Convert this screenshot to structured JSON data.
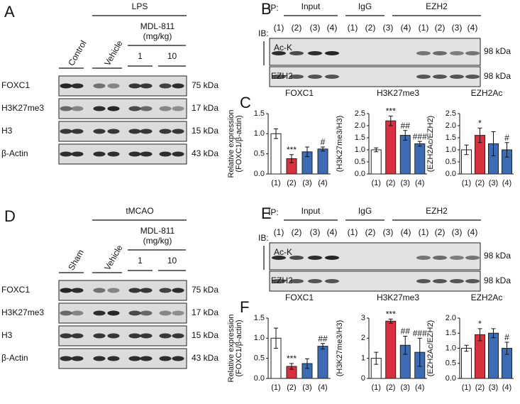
{
  "panels": [
    {
      "letter": "A",
      "condition": "LPS",
      "lanes": [
        "Control",
        "Vehicle"
      ],
      "treatment": [
        "MDL-811",
        "(mg/kg)"
      ],
      "doses": [
        "1",
        "10"
      ],
      "rows": [
        {
          "label": "FOXC1",
          "size": "75 kDa"
        },
        {
          "label": "H3K27me3",
          "size": "17 kDa"
        },
        {
          "label": "H3",
          "size": "15 kDa"
        },
        {
          "label": "β-Actin",
          "size": "43 kDa"
        }
      ]
    },
    {
      "letter": "B",
      "ip_label": "IP:",
      "ib_label": "IB:",
      "groups": [
        "Input",
        "IgG",
        "EZH2"
      ],
      "lanes": [
        "(1)",
        "(2)",
        "(3)",
        "(4)",
        "(1)",
        "(2)",
        "(3)",
        "(4)",
        "(1)",
        "(2)",
        "(3)",
        "(4)"
      ],
      "rows": [
        {
          "label": "Ac-K",
          "size": "98 kDa"
        },
        {
          "label": "EZH2",
          "size": "98 kDa"
        }
      ]
    },
    {
      "letter": "C"
    },
    {
      "letter": "D",
      "condition": "tMCAO",
      "lanes": [
        "Sham",
        "Vehicle"
      ],
      "treatment": [
        "MDL-811",
        "(mg/kg)"
      ],
      "doses": [
        "1",
        "10"
      ],
      "rows": [
        {
          "label": "FOXC1",
          "size": "75 kDa"
        },
        {
          "label": "H3K27me3",
          "size": "17 kDa"
        },
        {
          "label": "H3",
          "size": "15 kDa"
        },
        {
          "label": "β-Actin",
          "size": "43 kDa"
        }
      ]
    },
    {
      "letter": "E",
      "ip_label": "IP:",
      "ib_label": "IB:",
      "groups": [
        "Input",
        "IgG",
        "EZH2"
      ],
      "lanes": [
        "(1)",
        "(2)",
        "(3)",
        "(4)",
        "(1)",
        "(2)",
        "(3)",
        "(4)",
        "(1)",
        "(2)",
        "(3)",
        "(4)"
      ],
      "rows": [
        {
          "label": "Ac-K",
          "size": "98 kDa"
        },
        {
          "label": "EZH2",
          "size": "98 kDa"
        }
      ]
    },
    {
      "letter": "F"
    }
  ],
  "chart_data": [
    {
      "type": "bar",
      "title": "FOXC1",
      "ylabel": [
        "Relative expression",
        "(FOXC1/β-actin)"
      ],
      "categories": [
        "(1)",
        "(2)",
        "(3)",
        "(4)"
      ],
      "values": [
        1.0,
        0.38,
        0.55,
        0.62
      ],
      "errors": [
        0.12,
        0.1,
        0.12,
        0.05
      ],
      "colors": [
        "#ffffff",
        "#d7303f",
        "#3b6cb4",
        "#3b6cb4"
      ],
      "annotations": [
        null,
        "***",
        null,
        "#"
      ],
      "ylim": [
        0,
        1.5
      ],
      "yticks": [
        {
          "value": 0,
          "label": "0.0"
        },
        {
          "value": 0.5,
          "label": "0.5"
        },
        {
          "value": 1,
          "label": "1.0"
        },
        {
          "value": 1.5,
          "label": "1.5"
        }
      ]
    },
    {
      "type": "bar",
      "title": "H3K27me3",
      "ylabel": [
        "(H3K27me3/H3)"
      ],
      "categories": [
        "(1)",
        "(2)",
        "(3)",
        "(4)"
      ],
      "values": [
        1.0,
        2.2,
        1.6,
        1.25
      ],
      "errors": [
        0.08,
        0.2,
        0.2,
        0.1
      ],
      "colors": [
        "#ffffff",
        "#d7303f",
        "#3b6cb4",
        "#3b6cb4"
      ],
      "annotations": [
        null,
        "***",
        "##",
        "###"
      ],
      "ylim": [
        0,
        2.5
      ],
      "yticks": [
        {
          "value": 0,
          "label": "0.0"
        },
        {
          "value": 0.5,
          "label": "0.5"
        },
        {
          "value": 1,
          "label": "1.0"
        },
        {
          "value": 1.5,
          "label": "1.5"
        },
        {
          "value": 2,
          "label": "2.0"
        },
        {
          "value": 2.5,
          "label": "2.5"
        }
      ]
    },
    {
      "type": "bar",
      "title": "EZH2Ac",
      "ylabel": [
        "(EZH2Ac/EZH2)"
      ],
      "categories": [
        "(1)",
        "(2)",
        "(3)",
        "(4)"
      ],
      "values": [
        1.0,
        1.6,
        1.25,
        1.0
      ],
      "errors": [
        0.2,
        0.3,
        0.5,
        0.3
      ],
      "colors": [
        "#ffffff",
        "#d7303f",
        "#3b6cb4",
        "#3b6cb4"
      ],
      "annotations": [
        null,
        "*",
        null,
        "#"
      ],
      "ylim": [
        0,
        2.5
      ],
      "yticks": [
        {
          "value": 0,
          "label": "0.0"
        },
        {
          "value": 0.5,
          "label": "0.5"
        },
        {
          "value": 1,
          "label": "1.0"
        },
        {
          "value": 1.5,
          "label": "1.5"
        },
        {
          "value": 2,
          "label": "2.0"
        },
        {
          "value": 2.5,
          "label": "2.5"
        }
      ]
    },
    {
      "type": "bar",
      "title": "FOXC1",
      "ylabel": [
        "Relative expression",
        "(FOXC1/β-actin)"
      ],
      "categories": [
        "(1)",
        "(2)",
        "(3)",
        "(4)"
      ],
      "values": [
        1.0,
        0.3,
        0.37,
        0.8
      ],
      "errors": [
        0.25,
        0.07,
        0.12,
        0.07
      ],
      "colors": [
        "#ffffff",
        "#d7303f",
        "#3b6cb4",
        "#3b6cb4"
      ],
      "annotations": [
        null,
        "***",
        null,
        "##"
      ],
      "ylim": [
        0,
        1.5
      ],
      "yticks": [
        {
          "value": 0,
          "label": "0.0"
        },
        {
          "value": 0.5,
          "label": "0.5"
        },
        {
          "value": 1,
          "label": "1.0"
        },
        {
          "value": 1.5,
          "label": "1.5"
        }
      ]
    },
    {
      "type": "bar",
      "title": "H3K27me3",
      "ylabel": [
        "(H3K27me3/H3)"
      ],
      "categories": [
        "(1)",
        "(2)",
        "(3)",
        "(4)"
      ],
      "values": [
        1.0,
        2.85,
        1.65,
        1.3
      ],
      "errors": [
        0.3,
        0.1,
        0.45,
        0.7
      ],
      "colors": [
        "#ffffff",
        "#d7303f",
        "#3b6cb4",
        "#3b6cb4"
      ],
      "annotations": [
        null,
        "***",
        "##",
        "###"
      ],
      "ylim": [
        0,
        3
      ],
      "yticks": [
        0,
        1,
        2,
        3
      ]
    },
    {
      "type": "bar",
      "title": "EZH2Ac",
      "ylabel": [
        "(EZH2Ac/EZH2)"
      ],
      "categories": [
        "(1)",
        "(2)",
        "(3)",
        "(4)"
      ],
      "values": [
        1.0,
        1.45,
        1.5,
        1.0
      ],
      "errors": [
        0.1,
        0.2,
        0.15,
        0.2
      ],
      "colors": [
        "#ffffff",
        "#d7303f",
        "#3b6cb4",
        "#3b6cb4"
      ],
      "annotations": [
        null,
        "*",
        null,
        "#"
      ],
      "ylim": [
        0,
        2
      ],
      "yticks": [
        {
          "value": 0,
          "label": "0.0"
        },
        {
          "value": 0.5,
          "label": "0.5"
        },
        {
          "value": 1,
          "label": "1.0"
        },
        {
          "value": 1.5,
          "label": "1.5"
        },
        {
          "value": 2,
          "label": "2.0"
        }
      ]
    }
  ]
}
